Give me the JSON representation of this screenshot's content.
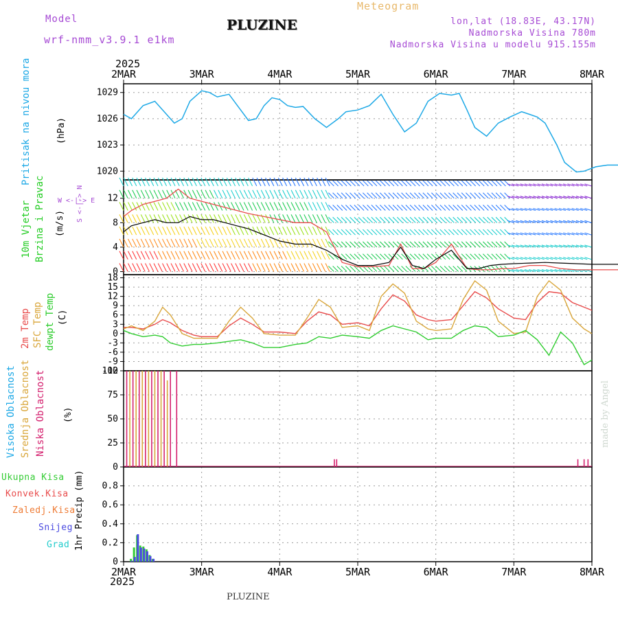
{
  "header": {
    "model_label": "Model",
    "model_name": "wrf-nmm_v3.9.1 e1km",
    "station": "PLUZINE",
    "meteogram": "Meteogram",
    "coords": "lon,lat (18.83E, 43.17N)",
    "altitude": "Nadmorska Visina 780m",
    "model_altitude": "Nadmorska Visina u modelu 915.155m",
    "year": "2025",
    "footer_station": "PLUZINE",
    "watermark": "made by Angel"
  },
  "colors": {
    "pressure": "#1ca8e6",
    "wind_label": "#22cc22",
    "temp2m": "#e84a4a",
    "sfc": "#d9a63a",
    "dewpt": "#2ecc2e",
    "cloud_high": "#1ca8e6",
    "cloud_mid": "#d9a63a",
    "cloud_low": "#d4206e",
    "precip_total": "#33cc33",
    "precip_conv": "#e84a4a",
    "precip_froz": "#ee7a33",
    "precip_snow": "#4a4ae0",
    "precip_graupel": "#22cccc",
    "purple": "#a64ad4"
  },
  "x_axis": {
    "ticks": [
      "2MAR",
      "3MAR",
      "4MAR",
      "5MAR",
      "6MAR",
      "7MAR",
      "8MAR"
    ]
  },
  "panels": {
    "pressure": {
      "label": "Pritisak na nivou mora",
      "unit": "(hPa)"
    },
    "wind": {
      "label1": "10m Vjetar",
      "label2": "Brzina i Pravac",
      "unit": "(m/s)",
      "compass": "W <-|-> E",
      "compass2": "S <-|-> N"
    },
    "temp": {
      "label1": "2m Temp",
      "label2": "SFC Temp",
      "label3": "dewpt Temp",
      "unit": "(C)"
    },
    "cloud": {
      "label1": "Visoka Oblacnost",
      "label2": "Srednja Oblacnost",
      "label3": "Niska Oblacnost",
      "unit": "(%)"
    },
    "precip": {
      "label": "1hr Precip (mm)",
      "legend": [
        "Ukupna Kisa",
        "Konvek.Kisa",
        "Zaledj.Kisa",
        "Snijeg",
        "Grad"
      ]
    }
  },
  "chart_data": [
    {
      "type": "line",
      "panel": "pressure",
      "ylim": [
        1019,
        1030
      ],
      "yticks": [
        1020,
        1023,
        1026,
        1029
      ],
      "x_days": [
        0,
        0.1,
        0.25,
        0.4,
        0.55,
        0.65,
        0.75,
        0.85,
        1.0,
        1.1,
        1.2,
        1.35,
        1.5,
        1.6,
        1.7,
        1.8,
        1.9,
        2.0,
        2.1,
        2.2,
        2.3,
        2.45,
        2.6,
        2.75,
        2.85,
        3.0,
        3.15,
        3.3,
        3.45,
        3.6,
        3.75,
        3.9,
        4.05,
        4.2,
        4.3,
        4.4,
        4.5,
        4.65,
        4.8,
        4.95,
        5.1,
        5.2,
        5.3,
        5.4,
        5.55,
        5.65,
        5.8,
        5.9,
        6.05,
        6.2,
        6.3,
        6.4,
        6.55,
        6.7,
        6.8,
        6.9,
        7.0
      ],
      "series": [
        {
          "values": [
            1026.5,
            1026.0,
            1027.5,
            1028.0,
            1026.5,
            1025.5,
            1026.0,
            1028.0,
            1029.2,
            1029.0,
            1028.5,
            1028.8,
            1027.0,
            1025.8,
            1026.0,
            1027.5,
            1028.4,
            1028.2,
            1027.5,
            1027.3,
            1027.4,
            1026.0,
            1025.0,
            1026.0,
            1026.8,
            1027.0,
            1027.5,
            1028.8,
            1026.5,
            1024.5,
            1025.5,
            1028.0,
            1028.9,
            1028.7,
            1028.9,
            1027.0,
            1025.0,
            1024.0,
            1025.5,
            1026.2,
            1026.8,
            1026.5,
            1026.2,
            1025.5,
            1023.0,
            1021.0,
            1019.9,
            1020.0,
            1020.5,
            1020.7,
            1020.7,
            1020.7,
            1020.7,
            1020.7,
            1020.7,
            1020.7,
            1020.7
          ]
        }
      ]
    },
    {
      "type": "line",
      "panel": "wind",
      "ylim": [
        -0.5,
        15
      ],
      "yticks": [
        0,
        4,
        8,
        12
      ],
      "x_days": [
        0,
        0.1,
        0.25,
        0.4,
        0.55,
        0.7,
        0.85,
        1.0,
        1.15,
        1.3,
        1.45,
        1.6,
        1.8,
        2.0,
        2.2,
        2.4,
        2.6,
        2.8,
        3.0,
        3.2,
        3.4,
        3.55,
        3.7,
        3.85,
        4.0,
        4.2,
        4.4,
        4.55,
        4.7,
        4.85,
        5.0,
        5.2,
        5.4,
        5.6,
        5.8,
        6.0,
        6.2,
        6.4,
        6.6,
        6.8,
        7.0
      ],
      "series": [
        {
          "name": "speed",
          "values": [
            6.5,
            7.5,
            8.0,
            8.5,
            8.0,
            8.0,
            9.0,
            8.5,
            8.5,
            8.0,
            7.5,
            7.0,
            6.0,
            5.0,
            4.5,
            4.5,
            3.5,
            2.0,
            1.0,
            1.0,
            1.5,
            4.0,
            1.0,
            0.5,
            2.0,
            3.5,
            0.5,
            0.5,
            1.0,
            1.2,
            1.3,
            1.4,
            1.5,
            1.4,
            1.3,
            1.2,
            1.2,
            1.2,
            1.2,
            1.2,
            1.2
          ]
        },
        {
          "name": "gust",
          "values": [
            9.0,
            10.0,
            11.0,
            11.5,
            12.0,
            13.5,
            12.0,
            11.5,
            11.0,
            10.5,
            10.0,
            9.5,
            9.0,
            8.5,
            8.0,
            8.0,
            6.5,
            1.5,
            0.8,
            0.8,
            1.0,
            4.5,
            0.5,
            0.5,
            1.5,
            4.5,
            0.5,
            0.3,
            0.3,
            0.5,
            0.5,
            1.0,
            1.0,
            0.5,
            0.3,
            0.3,
            0.3,
            0.3,
            0.3,
            0.3,
            0.3
          ]
        }
      ]
    },
    {
      "type": "line",
      "panel": "temp",
      "ylim": [
        -12,
        19
      ],
      "yticks": [
        -12,
        -9,
        -6,
        -3,
        0,
        3,
        6,
        9,
        12,
        15,
        18
      ],
      "x_days": [
        0,
        0.1,
        0.25,
        0.4,
        0.5,
        0.6,
        0.75,
        0.9,
        1.0,
        1.2,
        1.35,
        1.5,
        1.65,
        1.8,
        2.0,
        2.2,
        2.35,
        2.5,
        2.65,
        2.8,
        3.0,
        3.15,
        3.3,
        3.45,
        3.6,
        3.75,
        3.9,
        4.0,
        4.2,
        4.35,
        4.5,
        4.65,
        4.8,
        5.0,
        5.15,
        5.3,
        5.45,
        5.6,
        5.75,
        5.9,
        6.0
      ],
      "series": [
        {
          "name": "2m Temp",
          "values": [
            2.0,
            2.0,
            1.5,
            3.0,
            4.5,
            3.5,
            1.0,
            -0.5,
            -1.0,
            -1.0,
            2.5,
            5.0,
            3.0,
            0.5,
            0.5,
            0.0,
            4.0,
            7.0,
            6.0,
            3.0,
            3.5,
            2.5,
            8.0,
            12.5,
            10.5,
            6.0,
            4.5,
            4.0,
            4.5,
            9.0,
            13.5,
            11.5,
            8.0,
            5.0,
            4.5,
            10.0,
            13.5,
            13.0,
            10.0,
            8.5,
            7.5
          ]
        },
        {
          "name": "SFC Temp",
          "values": [
            1.5,
            2.5,
            1.0,
            4.0,
            8.5,
            6.0,
            0.0,
            -1.5,
            -1.5,
            -1.5,
            4.0,
            8.5,
            5.0,
            0.0,
            -0.5,
            -0.5,
            5.0,
            11.0,
            8.5,
            2.0,
            2.5,
            1.0,
            12.0,
            16.0,
            13.0,
            4.0,
            1.5,
            1.0,
            1.5,
            11.0,
            17.0,
            14.0,
            4.0,
            0.0,
            0.5,
            12.0,
            17.0,
            14.0,
            5.0,
            1.5,
            0.0
          ]
        },
        {
          "name": "dewpt Temp",
          "values": [
            1.0,
            0.0,
            -1.0,
            -0.5,
            -1.0,
            -3.0,
            -4.0,
            -3.5,
            -3.5,
            -3.0,
            -2.5,
            -2.0,
            -3.0,
            -4.5,
            -4.5,
            -3.5,
            -3.0,
            -1.0,
            -1.5,
            -0.5,
            -1.0,
            -1.5,
            1.0,
            2.5,
            1.5,
            0.5,
            -2.0,
            -1.5,
            -1.5,
            1.0,
            2.5,
            2.0,
            -1.0,
            -0.5,
            1.0,
            -2.0,
            -7.0,
            0.5,
            -3.0,
            -10.0,
            -8.5
          ]
        }
      ]
    },
    {
      "type": "bar",
      "panel": "cloud",
      "ylim": [
        0,
        100
      ],
      "yticks": [
        0,
        25,
        50,
        75,
        100
      ],
      "series": [
        {
          "name": "Niska",
          "x_days": [
            0.04,
            0.12,
            0.2,
            0.28,
            0.36,
            0.44,
            0.52,
            0.6,
            0.68,
            2.7,
            2.73,
            5.82,
            5.9,
            5.95,
            6.88,
            6.92,
            7.38
          ],
          "values": [
            100,
            100,
            100,
            100,
            100,
            100,
            100,
            100,
            100,
            8,
            8,
            8,
            8,
            8,
            8,
            8,
            8
          ]
        },
        {
          "name": "Srednja",
          "x_days": [
            0.08,
            0.16,
            0.24,
            0.32,
            0.4,
            0.48,
            0.56
          ],
          "values": [
            100,
            100,
            100,
            100,
            100,
            100,
            90
          ]
        }
      ]
    },
    {
      "type": "bar",
      "panel": "precip",
      "ylim": [
        0,
        1.0
      ],
      "yticks": [
        0,
        0.2,
        0.4,
        0.6,
        0.8
      ],
      "series": [
        {
          "name": "Ukupna Kisa",
          "x_days": [
            0.08,
            0.12,
            0.16,
            0.2,
            0.24,
            0.28,
            0.32,
            0.36
          ],
          "values": [
            0.03,
            0.15,
            0.28,
            0.17,
            0.16,
            0.13,
            0.07,
            0.03
          ]
        },
        {
          "name": "Snijeg",
          "x_days": [
            0.09,
            0.13,
            0.17,
            0.21,
            0.25,
            0.29,
            0.33,
            0.37
          ],
          "values": [
            0.01,
            0.05,
            0.29,
            0.15,
            0.14,
            0.11,
            0.06,
            0.03
          ]
        }
      ]
    }
  ]
}
